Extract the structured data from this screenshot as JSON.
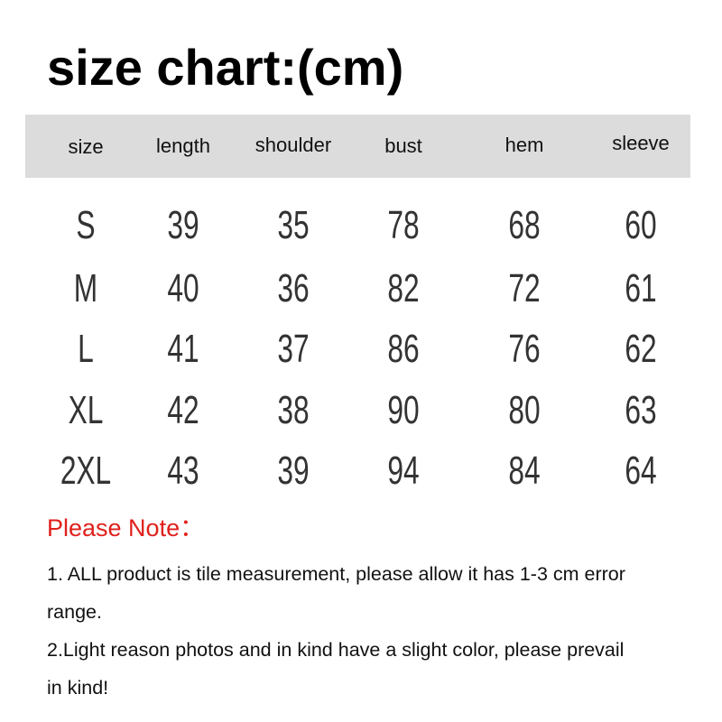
{
  "title": "size chart:(cm)",
  "table": {
    "headers": [
      "size",
      "length",
      "shoulder",
      "bust",
      "hem",
      "sleeve"
    ],
    "rows": [
      [
        "S",
        "39",
        "35",
        "78",
        "68",
        "60"
      ],
      [
        "M",
        "40",
        "36",
        "82",
        "72",
        "61"
      ],
      [
        "L",
        "41",
        "37",
        "86",
        "76",
        "62"
      ],
      [
        "XL",
        "42",
        "38",
        "90",
        "80",
        "63"
      ],
      [
        "2XL",
        "43",
        "39",
        "94",
        "84",
        "64"
      ]
    ]
  },
  "note": {
    "title": "Please Note：",
    "lines": [
      "1. ALL product is tile measurement, please allow it has 1-3 cm error",
      "range.",
      "2.Light reason photos and in kind have a slight color, please prevail",
      "in kind!"
    ]
  },
  "colors": {
    "header_band": "#dcdcdc",
    "note_title": "#e0201b"
  }
}
